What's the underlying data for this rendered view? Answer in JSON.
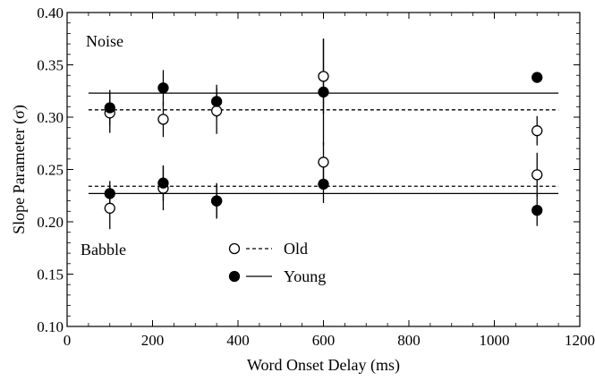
{
  "chart_data": {
    "type": "scatter",
    "xlabel": "Word  Onset Delay (ms)",
    "ylabel": "Slope Parameter (σ)",
    "xlim": [
      0,
      1200
    ],
    "ylim": [
      0.1,
      0.4
    ],
    "xticks": [
      0,
      200,
      400,
      600,
      800,
      1000,
      1200
    ],
    "yticks": [
      0.1,
      0.15,
      0.2,
      0.25,
      0.3,
      0.35,
      0.4
    ],
    "xtick_labels": [
      "0",
      "200",
      "400",
      "600",
      "800",
      "1000",
      "1200"
    ],
    "ytick_labels": [
      "0.10",
      "0.15",
      "0.20",
      "0.25",
      "0.30",
      "0.35",
      "0.40"
    ],
    "panel_labels": {
      "noise": "Noise",
      "babble": "Babble"
    },
    "legend": {
      "placement": "lower-center",
      "entries": [
        {
          "label": "Old",
          "marker": "open-circle",
          "line": "dashed"
        },
        {
          "label": "Young",
          "marker": "filled-circle",
          "line": "solid"
        }
      ]
    },
    "series": [
      {
        "group": "Noise",
        "key": "old",
        "marker": "open-circle",
        "x": [
          100,
          225,
          350,
          600,
          1100
        ],
        "y": [
          0.304,
          0.298,
          0.306,
          0.339,
          0.287
        ],
        "err": [
          0.019,
          0.017,
          0.022,
          0.036,
          0.014
        ],
        "fit": 0.307,
        "fit_style": "dashed"
      },
      {
        "group": "Noise",
        "key": "young",
        "marker": "filled-circle",
        "x": [
          100,
          225,
          350,
          600,
          1100
        ],
        "y": [
          0.309,
          0.328,
          0.315,
          0.324,
          0.338
        ],
        "err": [
          0.017,
          0.017,
          0.016,
          0.051,
          0.0
        ],
        "fit": 0.323,
        "fit_style": "solid"
      },
      {
        "group": "Babble",
        "key": "old",
        "marker": "open-circle",
        "x": [
          100,
          225,
          350,
          600,
          1100
        ],
        "y": [
          0.213,
          0.232,
          0.22,
          0.257,
          0.245
        ],
        "err": [
          0.02,
          0.021,
          0.017,
          0.019,
          0.021
        ],
        "fit": 0.234,
        "fit_style": "dashed"
      },
      {
        "group": "Babble",
        "key": "young",
        "marker": "filled-circle",
        "x": [
          100,
          225,
          350,
          600,
          1100
        ],
        "y": [
          0.227,
          0.237,
          0.22,
          0.236,
          0.211
        ],
        "err": [
          0.012,
          0.017,
          0.016,
          0.018,
          0.015
        ],
        "fit": 0.227,
        "fit_style": "solid"
      }
    ]
  }
}
